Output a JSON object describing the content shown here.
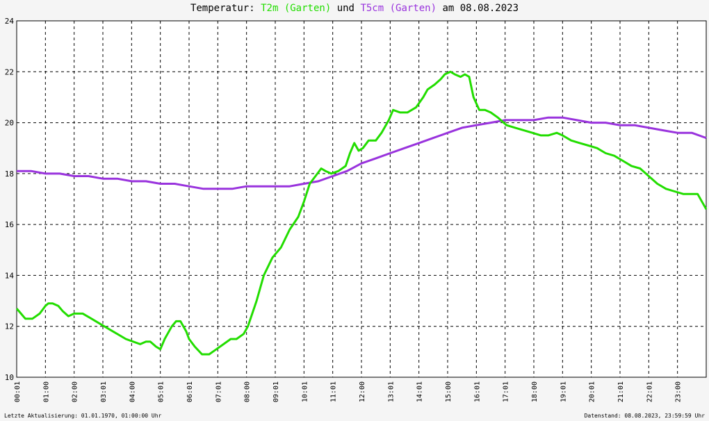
{
  "title": {
    "prefix": "Temperatur:",
    "series1": "T2m (Garten)",
    "middle": "und",
    "series2": "T5cm (Garten)",
    "suffix": "am 08.08.2023"
  },
  "footer": {
    "left": "Letzte Aktualisierung: 01.01.1970, 01:00:00 Uhr",
    "right": "Datenstand: 08.08.2023, 23:59:59 Uhr"
  },
  "colors": {
    "t2m": "#22dd00",
    "t5cm": "#9933dd",
    "grid": "#000000",
    "background": "#ffffff"
  },
  "chart_data": {
    "type": "line",
    "title": "Temperatur: T2m (Garten) und T5cm (Garten) am 08.08.2023",
    "xlabel": "",
    "ylabel": "",
    "xlim": [
      0,
      24
    ],
    "ylim": [
      10,
      24
    ],
    "yticks": [
      10,
      12,
      14,
      16,
      18,
      20,
      22,
      24
    ],
    "xtick_labels": [
      "00:01",
      "01:00",
      "02:00",
      "03:01",
      "04:00",
      "05:01",
      "06:01",
      "07:01",
      "08:00",
      "09:01",
      "10:01",
      "11:01",
      "12:00",
      "13:01",
      "14:01",
      "15:00",
      "16:01",
      "17:01",
      "18:00",
      "19:01",
      "20:01",
      "21:01",
      "22:01",
      "23:00"
    ],
    "grid": true,
    "legend": "title",
    "series": [
      {
        "name": "T2m (Garten)",
        "color": "#22dd00",
        "x": [
          0,
          0.15,
          0.3,
          0.55,
          0.8,
          1.0,
          1.1,
          1.25,
          1.45,
          1.6,
          1.8,
          2.0,
          2.3,
          2.6,
          2.9,
          3.2,
          3.5,
          3.8,
          4.05,
          4.3,
          4.5,
          4.65,
          4.85,
          5.0,
          5.15,
          5.4,
          5.55,
          5.7,
          5.9,
          6.0,
          6.2,
          6.45,
          6.7,
          6.95,
          7.2,
          7.45,
          7.65,
          7.9,
          8.05,
          8.2,
          8.35,
          8.6,
          8.9,
          9.2,
          9.5,
          9.8,
          10.0,
          10.2,
          10.4,
          10.6,
          10.75,
          10.95,
          11.2,
          11.45,
          11.6,
          11.75,
          11.9,
          12.05,
          12.25,
          12.5,
          12.7,
          12.95,
          13.1,
          13.35,
          13.6,
          13.9,
          14.15,
          14.3,
          14.55,
          14.75,
          14.9,
          15.1,
          15.25,
          15.45,
          15.6,
          15.75,
          15.9,
          16.1,
          16.3,
          16.5,
          16.75,
          17.05,
          17.35,
          17.65,
          17.95,
          18.25,
          18.5,
          18.8,
          19.0,
          19.3,
          19.6,
          19.9,
          20.2,
          20.5,
          20.8,
          21.1,
          21.4,
          21.7,
          22.0,
          22.3,
          22.6,
          22.9,
          23.2,
          23.45,
          23.7,
          23.85,
          24.0
        ],
        "y": [
          12.7,
          12.5,
          12.3,
          12.3,
          12.5,
          12.8,
          12.9,
          12.9,
          12.8,
          12.6,
          12.4,
          12.5,
          12.5,
          12.3,
          12.1,
          11.9,
          11.7,
          11.5,
          11.4,
          11.3,
          11.4,
          11.4,
          11.2,
          11.1,
          11.5,
          12.0,
          12.2,
          12.2,
          11.8,
          11.5,
          11.2,
          10.9,
          10.9,
          11.1,
          11.3,
          11.5,
          11.5,
          11.7,
          12.0,
          12.5,
          13.0,
          14.0,
          14.7,
          15.1,
          15.8,
          16.3,
          16.9,
          17.6,
          17.9,
          18.2,
          18.1,
          18.0,
          18.1,
          18.3,
          18.8,
          19.2,
          18.9,
          19.0,
          19.3,
          19.3,
          19.6,
          20.1,
          20.5,
          20.4,
          20.4,
          20.6,
          21.0,
          21.3,
          21.5,
          21.7,
          21.9,
          22.0,
          21.9,
          21.8,
          21.9,
          21.8,
          21.0,
          20.5,
          20.5,
          20.4,
          20.2,
          19.9,
          19.8,
          19.7,
          19.6,
          19.5,
          19.5,
          19.6,
          19.5,
          19.3,
          19.2,
          19.1,
          19.0,
          18.8,
          18.7,
          18.5,
          18.3,
          18.2,
          17.9,
          17.6,
          17.4,
          17.3,
          17.2,
          17.2,
          17.2,
          16.9,
          16.6
        ]
      },
      {
        "name": "T5cm (Garten)",
        "color": "#9933dd",
        "x": [
          0,
          0.5,
          1.0,
          1.5,
          2.0,
          2.5,
          3.0,
          3.5,
          4.0,
          4.5,
          5.0,
          5.5,
          6.0,
          6.5,
          7.0,
          7.5,
          8.0,
          8.5,
          9.0,
          9.5,
          10.0,
          10.5,
          11.0,
          11.5,
          12.0,
          12.5,
          13.0,
          13.5,
          14.0,
          14.5,
          15.0,
          15.5,
          16.0,
          16.5,
          17.0,
          17.5,
          18.0,
          18.5,
          19.0,
          19.5,
          20.0,
          20.5,
          21.0,
          21.5,
          22.0,
          22.5,
          23.0,
          23.5,
          24.0
        ],
        "y": [
          18.1,
          18.1,
          18.0,
          18.0,
          17.9,
          17.9,
          17.8,
          17.8,
          17.7,
          17.7,
          17.6,
          17.6,
          17.5,
          17.4,
          17.4,
          17.4,
          17.5,
          17.5,
          17.5,
          17.5,
          17.6,
          17.7,
          17.9,
          18.1,
          18.4,
          18.6,
          18.8,
          19.0,
          19.2,
          19.4,
          19.6,
          19.8,
          19.9,
          20.0,
          20.1,
          20.1,
          20.1,
          20.2,
          20.2,
          20.1,
          20.0,
          20.0,
          19.9,
          19.9,
          19.8,
          19.7,
          19.6,
          19.6,
          19.4
        ]
      }
    ]
  }
}
